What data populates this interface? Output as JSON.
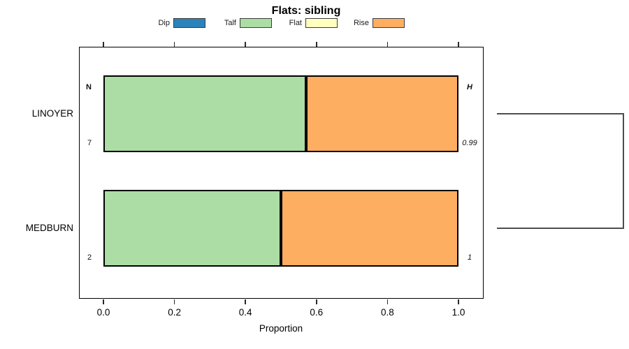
{
  "title": "Flats: sibling",
  "xlabel": "Proportion",
  "headers": {
    "n": "N",
    "h": "H"
  },
  "legend": [
    {
      "label": "Dip",
      "color": "#2B83BA"
    },
    {
      "label": "Talf",
      "color": "#ABDDA4"
    },
    {
      "label": "Flat",
      "color": "#FFFFBF"
    },
    {
      "label": "Rise",
      "color": "#FDAE61"
    }
  ],
  "chart_data": {
    "type": "bar",
    "orientation": "horizontal",
    "stacked": true,
    "title": "Flats: sibling",
    "xlabel": "Proportion",
    "xlim": [
      0,
      1
    ],
    "xticks": [
      "0.0",
      "0.2",
      "0.4",
      "0.6",
      "0.8",
      "1.0"
    ],
    "grid": false,
    "legend_position": "top",
    "categories": [
      "LINOYER",
      "MEDBURN"
    ],
    "series": [
      {
        "name": "Dip",
        "color": "#2B83BA",
        "values": [
          0,
          0
        ]
      },
      {
        "name": "Talf",
        "color": "#ABDDA4",
        "values": [
          0.571,
          0.5
        ]
      },
      {
        "name": "Flat",
        "color": "#FFFFBF",
        "values": [
          0,
          0
        ]
      },
      {
        "name": "Rise",
        "color": "#FDAE61",
        "values": [
          0.429,
          0.5
        ]
      }
    ],
    "n_values": [
      "7",
      "2"
    ],
    "h_values": [
      "0.99",
      "1"
    ],
    "annotations": {
      "n_header": "N",
      "h_header": "H"
    },
    "right_panel": "cluster-dendrogram-bracket"
  }
}
